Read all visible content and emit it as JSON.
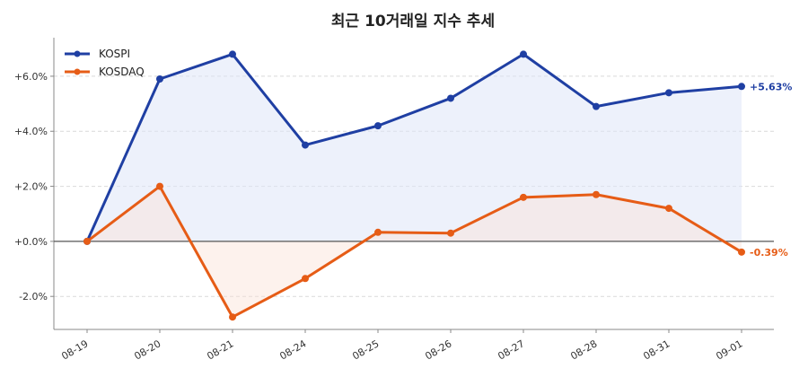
{
  "colors": {
    "kospi": "#1f3fa3",
    "kosdaq": "#e65c16",
    "grid": "#d9d9d9",
    "axis": "#888888",
    "zero": "#555555"
  },
  "chart_data": {
    "type": "line",
    "title": "최근 10거래일 지수 추세",
    "xlabel": "",
    "ylabel": "",
    "categories": [
      "08-19",
      "08-20",
      "08-21",
      "08-24",
      "08-25",
      "08-26",
      "08-27",
      "08-28",
      "08-31",
      "09-01"
    ],
    "ylim": [
      -3.2,
      7.4
    ],
    "yticks": [
      -2.0,
      0.0,
      2.0,
      4.0,
      6.0
    ],
    "ytick_labels": [
      "-2.0%",
      "+0.0%",
      "+2.0%",
      "+4.0%",
      "+6.0%"
    ],
    "legend_position": "top-left",
    "grid": true,
    "series": [
      {
        "name": "KOSPI",
        "values": [
          0.0,
          5.9,
          6.8,
          3.5,
          4.2,
          5.2,
          6.8,
          4.9,
          5.4,
          5.63
        ],
        "end_label": "+5.63%"
      },
      {
        "name": "KOSDAQ",
        "values": [
          0.0,
          2.0,
          -2.75,
          -1.35,
          0.33,
          0.3,
          1.6,
          1.7,
          1.2,
          -0.39
        ],
        "end_label": "-0.39%"
      }
    ]
  }
}
